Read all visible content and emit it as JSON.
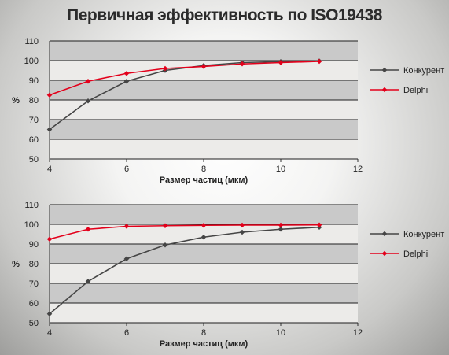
{
  "title": "Первичная эффективность по ISO19438",
  "chart_data": [
    {
      "type": "line",
      "x": [
        4,
        5,
        6,
        7,
        8,
        9,
        10,
        11
      ],
      "series": [
        {
          "name": "Конкурент",
          "color": "#454545",
          "values": [
            65,
            79.5,
            89.5,
            95,
            97.5,
            99,
            99.5,
            99.8
          ]
        },
        {
          "name": "Delphi",
          "color": "#e3001b",
          "values": [
            82.5,
            89.5,
            93.5,
            96,
            97,
            98.3,
            99,
            99.6
          ]
        }
      ],
      "xlabel": "Размер частиц (мкм)",
      "ylabel": "%",
      "xlim": [
        4,
        12
      ],
      "ylim": [
        50,
        110
      ],
      "xticks": [
        4,
        6,
        8,
        10,
        12
      ],
      "yticks": [
        50,
        60,
        70,
        80,
        90,
        100,
        110
      ],
      "legend": "right",
      "grid": true
    },
    {
      "type": "line",
      "x": [
        4,
        5,
        6,
        7,
        8,
        9,
        10,
        11
      ],
      "series": [
        {
          "name": "Конкурент",
          "color": "#454545",
          "values": [
            54.5,
            71,
            82.5,
            89.5,
            93.5,
            96,
            97.5,
            98.5
          ]
        },
        {
          "name": "Delphi",
          "color": "#e3001b",
          "values": [
            92.5,
            97.5,
            99,
            99.3,
            99.5,
            99.6,
            99.6,
            99.7
          ]
        }
      ],
      "xlabel": "Размер частиц (мкм)",
      "ylabel": "%",
      "xlim": [
        4,
        12
      ],
      "ylim": [
        50,
        110
      ],
      "xticks": [
        4,
        6,
        8,
        10,
        12
      ],
      "yticks": [
        50,
        60,
        70,
        80,
        90,
        100,
        110
      ],
      "legend": "right",
      "grid": true
    }
  ]
}
